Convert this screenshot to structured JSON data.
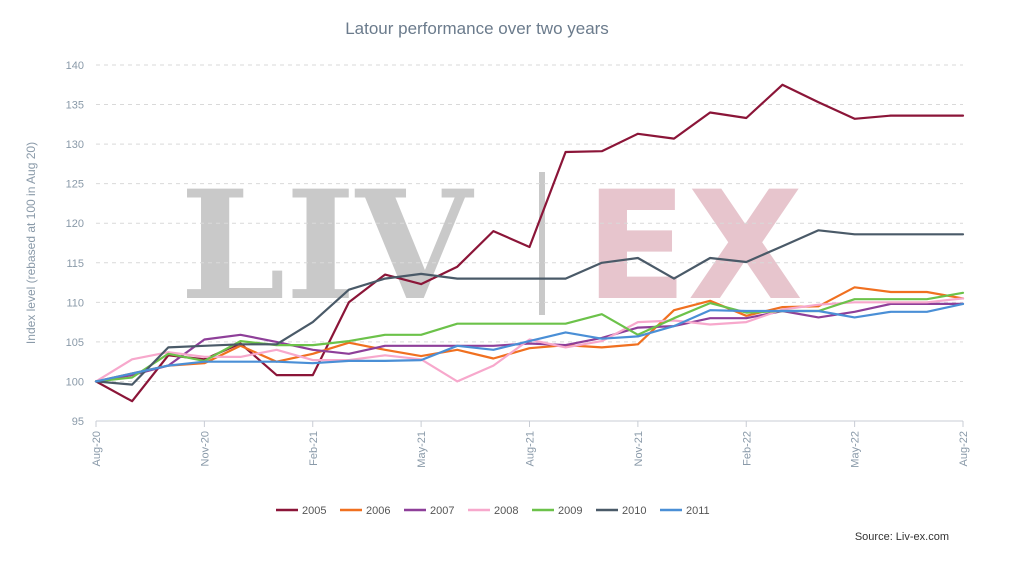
{
  "chart_data": {
    "type": "line",
    "title": "Latour performance over two years",
    "ylabel": "Index level (rebased at 100 in Aug 20)",
    "xlabel": "",
    "ylim": [
      95,
      140
    ],
    "yticks": [
      "95",
      "100",
      "105",
      "110",
      "115",
      "120",
      "125",
      "130",
      "135",
      "140"
    ],
    "x_tick_labels": [
      "Aug-20",
      "Nov-20",
      "Feb-21",
      "May-21",
      "Aug-21",
      "Nov-21",
      "Feb-22",
      "May-22",
      "Aug-22"
    ],
    "x_tick_index": [
      0,
      3,
      6,
      9,
      12,
      15,
      18,
      21,
      24
    ],
    "num_points": 25,
    "grid": true,
    "legend_position": "bottom",
    "source": "Source: Liv-ex.com",
    "watermark": [
      "LIV",
      "EX"
    ],
    "series": [
      {
        "name": "2005",
        "color": "#8b1538",
        "values": [
          100,
          97.5,
          103.3,
          102.8,
          104.8,
          100.8,
          100.8,
          110,
          113.5,
          112.3,
          114.5,
          119,
          117,
          129,
          129.1,
          131.3,
          130.7,
          134,
          133.3,
          137.5,
          135.3,
          133.2,
          133.6,
          133.6,
          133.6
        ]
      },
      {
        "name": "2006",
        "color": "#f07020",
        "values": [
          100,
          101,
          102,
          102.3,
          104.5,
          102.5,
          103.5,
          104.9,
          104,
          103.2,
          104,
          102.9,
          104.2,
          104.6,
          104.3,
          104.7,
          109,
          110.2,
          108.3,
          109.4,
          109.5,
          111.9,
          111.3,
          111.3,
          110.5
        ]
      },
      {
        "name": "2007",
        "color": "#8e3f99",
        "values": [
          100,
          100.8,
          102,
          105.3,
          105.9,
          105,
          104,
          103.5,
          104.5,
          104.5,
          104.5,
          104.5,
          104.8,
          104.6,
          105.5,
          106.8,
          107,
          108,
          108,
          108.9,
          108.1,
          108.8,
          109.8,
          109.8,
          109.8
        ]
      },
      {
        "name": "2008",
        "color": "#f7a8cc",
        "values": [
          100,
          102.8,
          103.7,
          103.1,
          103.1,
          104,
          102.7,
          102.7,
          103.3,
          102.8,
          100,
          102,
          105.3,
          104.3,
          105.1,
          107.5,
          107.7,
          107.2,
          107.5,
          109.1,
          109.7,
          110,
          110,
          110,
          110.5
        ]
      },
      {
        "name": "2009",
        "color": "#6cc24a",
        "values": [
          100,
          100.5,
          103.5,
          102.6,
          105.1,
          104.6,
          104.6,
          105.1,
          105.9,
          105.9,
          107.3,
          107.3,
          107.3,
          107.3,
          108.5,
          105.9,
          108,
          109.9,
          108.7,
          108.9,
          108.9,
          110.4,
          110.4,
          110.4,
          111.2
        ]
      },
      {
        "name": "2010",
        "color": "#4a5a68",
        "values": [
          100,
          99.6,
          104.3,
          104.5,
          104.7,
          104.7,
          107.5,
          111.6,
          113,
          113.6,
          113,
          113,
          113,
          113,
          115,
          115.6,
          113,
          115.6,
          115.1,
          117.1,
          119.1,
          118.6,
          118.6,
          118.6,
          118.6
        ]
      },
      {
        "name": "2011",
        "color": "#4a8fd6",
        "values": [
          100,
          101,
          102,
          102.5,
          102.5,
          102.5,
          102.3,
          102.6,
          102.6,
          102.7,
          104.5,
          104,
          105.1,
          106.2,
          105.4,
          105.7,
          107,
          109,
          108.9,
          108.9,
          108.9,
          108.1,
          108.8,
          108.8,
          109.8
        ]
      }
    ]
  }
}
